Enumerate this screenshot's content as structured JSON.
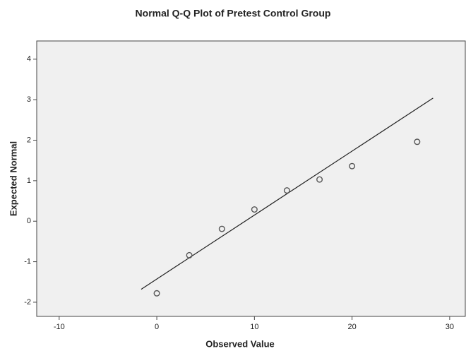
{
  "chart_data": {
    "type": "scatter",
    "title": "Normal Q-Q Plot of Pretest Control Group",
    "x_label": "Observed Value",
    "y_label": "Expected Normal",
    "series": [
      {
        "name": "Pretest Control Group",
        "color": "#555555",
        "x": [
          0,
          3.33,
          6.67,
          10,
          13.33,
          16.67,
          20,
          26.67
        ],
        "values": [
          -1.78,
          -0.84,
          -0.19,
          0.29,
          0.76,
          1.03,
          1.36,
          1.96
        ]
      }
    ],
    "reference_line": {
      "x": [
        -1.6,
        28.3
      ],
      "y": [
        -1.68,
        3.04
      ],
      "color": "#222222"
    },
    "xlim": [
      -12.3,
      31.6
    ],
    "xticks": [
      -10,
      0,
      10,
      20,
      30
    ],
    "ylim": [
      -2.35,
      4.45
    ],
    "yticks": [
      -2,
      -1,
      0,
      1,
      2,
      3,
      4
    ],
    "grid": false
  }
}
